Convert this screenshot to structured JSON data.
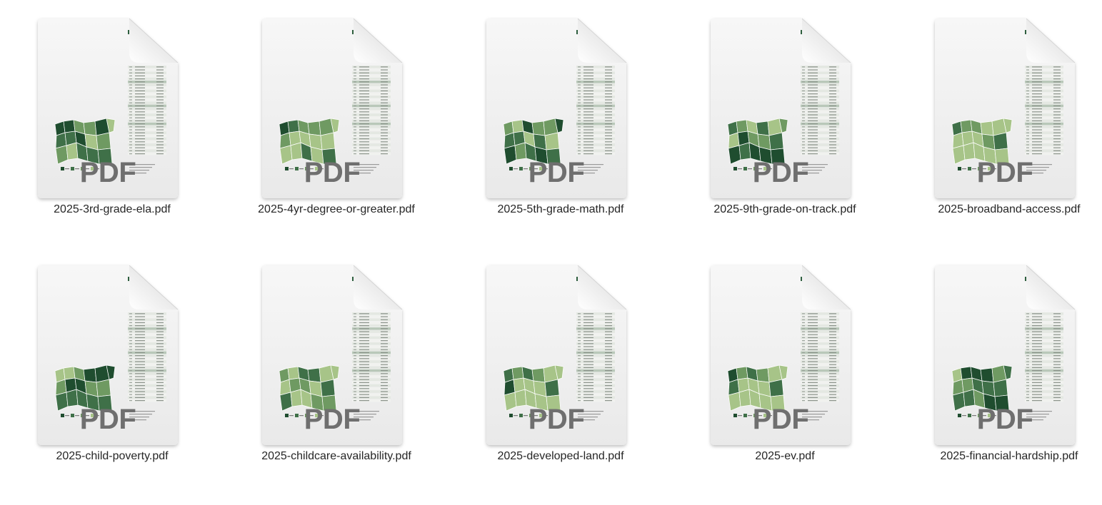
{
  "badge_text": "PDF",
  "map_colors": [
    "#1f4d2f",
    "#3f7048",
    "#6f9a62",
    "#a7c488"
  ],
  "files": [
    {
      "name": "2025-3rd-grade-ela.pdf",
      "icon": "pdf-file-icon",
      "palette": [
        0,
        1,
        2,
        0,
        1,
        3,
        2,
        0,
        1,
        2,
        3,
        1,
        0,
        2,
        1,
        3
      ]
    },
    {
      "name": "2025-4yr-degree-or-greater.pdf",
      "icon": "pdf-file-icon",
      "palette": [
        0,
        2,
        3,
        1,
        3,
        3,
        2,
        3,
        1,
        2,
        3,
        3,
        2,
        3,
        1,
        3
      ]
    },
    {
      "name": "2025-5th-grade-math.pdf",
      "icon": "pdf-file-icon",
      "palette": [
        2,
        1,
        0,
        3,
        1,
        2,
        0,
        3,
        1,
        2,
        1,
        0,
        2,
        3,
        1,
        0
      ]
    },
    {
      "name": "2025-9th-grade-on-track.pdf",
      "icon": "pdf-file-icon",
      "palette": [
        1,
        3,
        0,
        2,
        0,
        1,
        3,
        2,
        0,
        1,
        2,
        0,
        3,
        1,
        0,
        2
      ]
    },
    {
      "name": "2025-broadband-access.pdf",
      "icon": "pdf-file-icon",
      "palette": [
        1,
        3,
        3,
        2,
        3,
        3,
        2,
        3,
        3,
        3,
        2,
        3,
        3,
        1,
        3,
        3
      ]
    },
    {
      "name": "2025-child-poverty.pdf",
      "icon": "pdf-file-icon",
      "palette": [
        3,
        2,
        1,
        3,
        0,
        1,
        2,
        0,
        1,
        0,
        2,
        1,
        0,
        2,
        1,
        0
      ]
    },
    {
      "name": "2025-childcare-availability.pdf",
      "icon": "pdf-file-icon",
      "palette": [
        2,
        3,
        1,
        3,
        2,
        3,
        1,
        2,
        3,
        1,
        3,
        2,
        3,
        1,
        2,
        3
      ]
    },
    {
      "name": "2025-developed-land.pdf",
      "icon": "pdf-file-icon",
      "palette": [
        1,
        0,
        3,
        2,
        3,
        3,
        1,
        3,
        3,
        2,
        3,
        3,
        3,
        1,
        3,
        3
      ]
    },
    {
      "name": "2025-ev.pdf",
      "icon": "pdf-file-icon",
      "palette": [
        0,
        1,
        3,
        2,
        3,
        3,
        1,
        3,
        3,
        2,
        3,
        3,
        3,
        1,
        3,
        3
      ]
    },
    {
      "name": "2025-financial-hardship.pdf",
      "icon": "pdf-file-icon",
      "palette": [
        3,
        2,
        1,
        0,
        2,
        1,
        0,
        1,
        2,
        0,
        1,
        0,
        2,
        1,
        0,
        1
      ]
    }
  ]
}
